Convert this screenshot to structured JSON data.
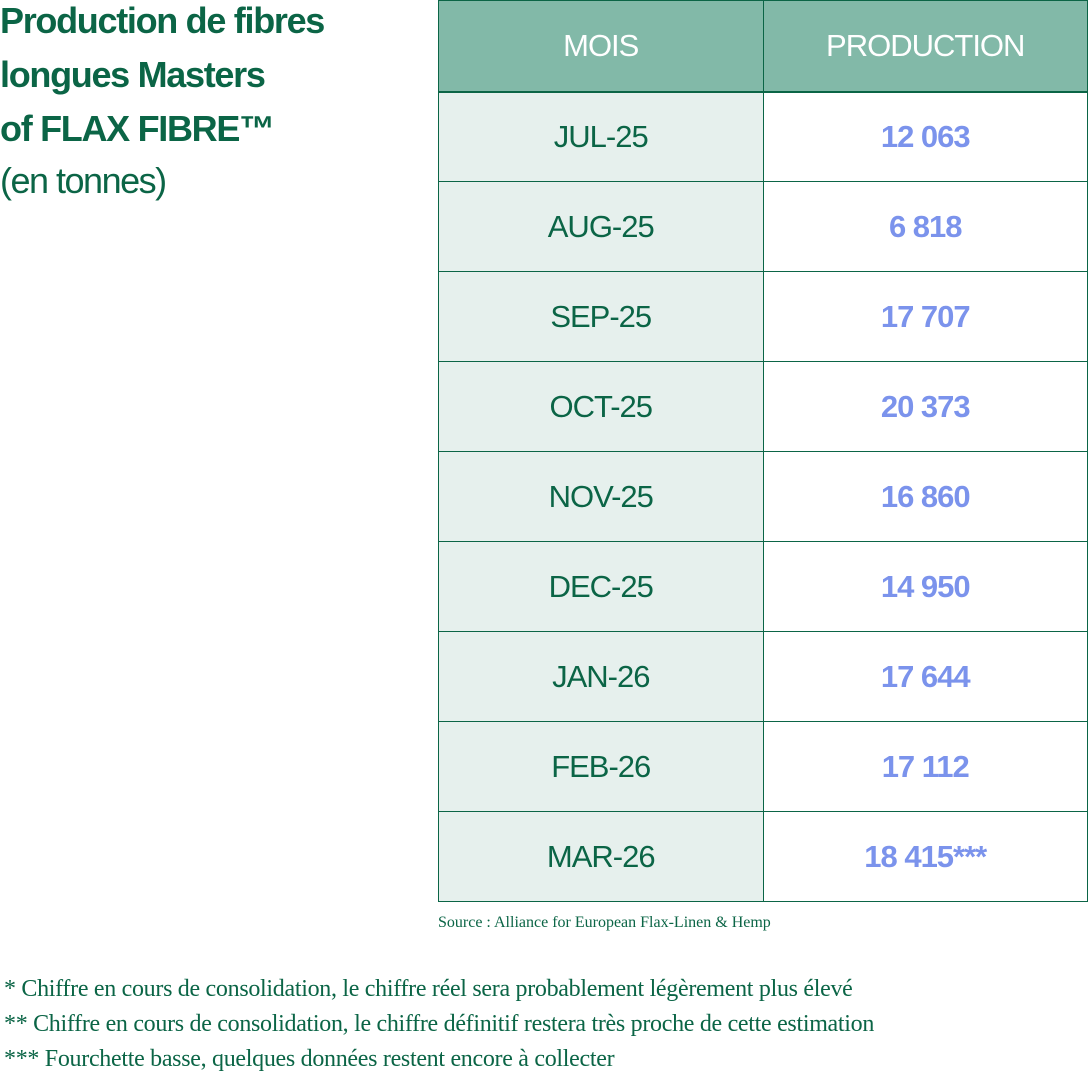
{
  "title": {
    "lines": [
      "Production de fibres",
      "longues Masters",
      "of FLAX FIBRE™"
    ],
    "subtitle": "(en tonnes)"
  },
  "table": {
    "headers": [
      "MOIS",
      "PRODUCTION"
    ],
    "rows": [
      {
        "month": "JUL-25",
        "production": "12 063"
      },
      {
        "month": "AUG-25",
        "production": "6 818"
      },
      {
        "month": "SEP-25",
        "production": "17 707"
      },
      {
        "month": "OCT-25",
        "production": "20 373"
      },
      {
        "month": "NOV-25",
        "production": "16 860"
      },
      {
        "month": "DEC-25",
        "production": "14 950"
      },
      {
        "month": "JAN-26",
        "production": "17 644"
      },
      {
        "month": "FEB-26",
        "production": "17 112"
      },
      {
        "month": "MAR-26",
        "production": "18 415***"
      }
    ]
  },
  "source": "Source : Alliance for European Flax-Linen & Hemp",
  "footnotes": [
    "* Chiffre en cours de consolidation, le chiffre réel sera probablement légèrement plus élevé",
    "** Chiffre en cours de consolidation, le chiffre définitif restera très proche de cette estimation",
    "*** Fourchette basse, quelques données restent encore à collecter"
  ],
  "colors": {
    "brand_green": "#0b6546",
    "header_bg": "#82b9a8",
    "month_cell_bg": "#e6f0ed",
    "value_text": "#7b93ec"
  },
  "chart_data": {
    "type": "table",
    "title": "Production de fibres longues Masters of FLAX FIBRE™",
    "subtitle": "(en tonnes)",
    "columns": [
      "MOIS",
      "PRODUCTION"
    ],
    "categories": [
      "JUL-25",
      "AUG-25",
      "SEP-25",
      "OCT-25",
      "NOV-25",
      "DEC-25",
      "JAN-26",
      "FEB-26",
      "MAR-26"
    ],
    "values": [
      12063,
      6818,
      17707,
      20373,
      16860,
      14950,
      17644,
      17112,
      18415
    ],
    "annotations": [
      {
        "category": "MAR-26",
        "text": "***"
      }
    ]
  }
}
